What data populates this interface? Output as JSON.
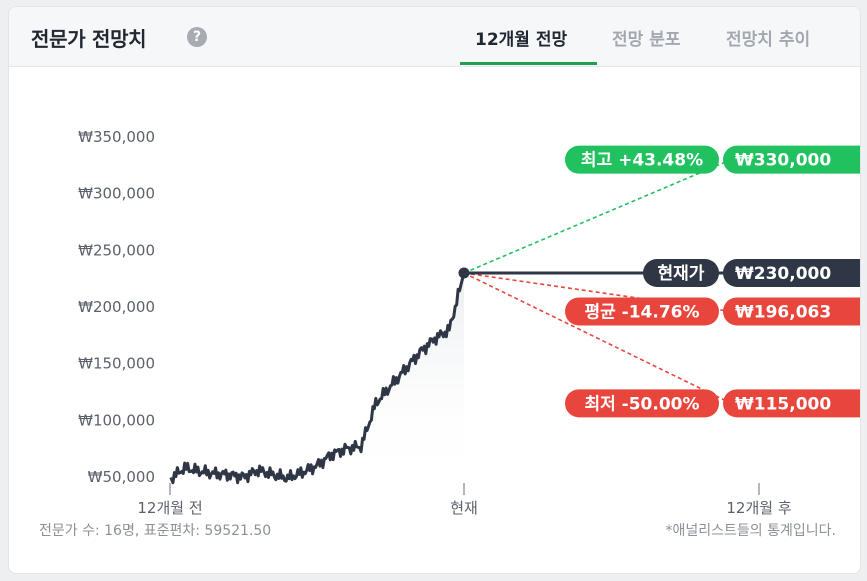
{
  "header": {
    "title": "전문가 전망치",
    "help_icon": "question-mark-icon",
    "tabs": [
      {
        "label": "12개월 전망",
        "active": true
      },
      {
        "label": "전망 분포",
        "active": false
      },
      {
        "label": "전망치 추이",
        "active": false
      }
    ]
  },
  "chart_data": {
    "type": "line",
    "y_ticks": [
      "₩350,000",
      "₩300,000",
      "₩250,000",
      "₩200,000",
      "₩150,000",
      "₩100,000",
      "₩50,000"
    ],
    "x_ticks": [
      "12개월 전",
      "현재",
      "12개월 후"
    ],
    "ylim": [
      50000,
      350000
    ],
    "price_history_approx": [
      48000,
      58000,
      55000,
      53000,
      52000,
      50000,
      56000,
      52000,
      49000,
      54000,
      60000,
      70000,
      75000,
      77000,
      115000,
      130000,
      145000,
      160000,
      172000,
      180000,
      230000
    ],
    "current": {
      "label": "현재가",
      "value_label": "₩230,000",
      "value": 230000
    },
    "targets": [
      {
        "name": "최고",
        "pct_label": "최고 +43.48%",
        "value_label": "₩330,000",
        "value": 330000,
        "color": "#22c160"
      },
      {
        "name": "평균",
        "pct_label": "평균 -14.76%",
        "value_label": "₩196,063",
        "value": 196063,
        "color": "#e8453c"
      },
      {
        "name": "최저",
        "pct_label": "최저 -50.00%",
        "value_label": "₩115,000",
        "value": 115000,
        "color": "#e8453c"
      }
    ],
    "colors": {
      "line": "#2f3645",
      "green": "#22c160",
      "red": "#e8453c",
      "dark": "#2f3645"
    }
  },
  "footer": {
    "left": "전문가 수: 16명, 표준편차: 59521.50",
    "right": "*애널리스트들의 통계입니다."
  }
}
